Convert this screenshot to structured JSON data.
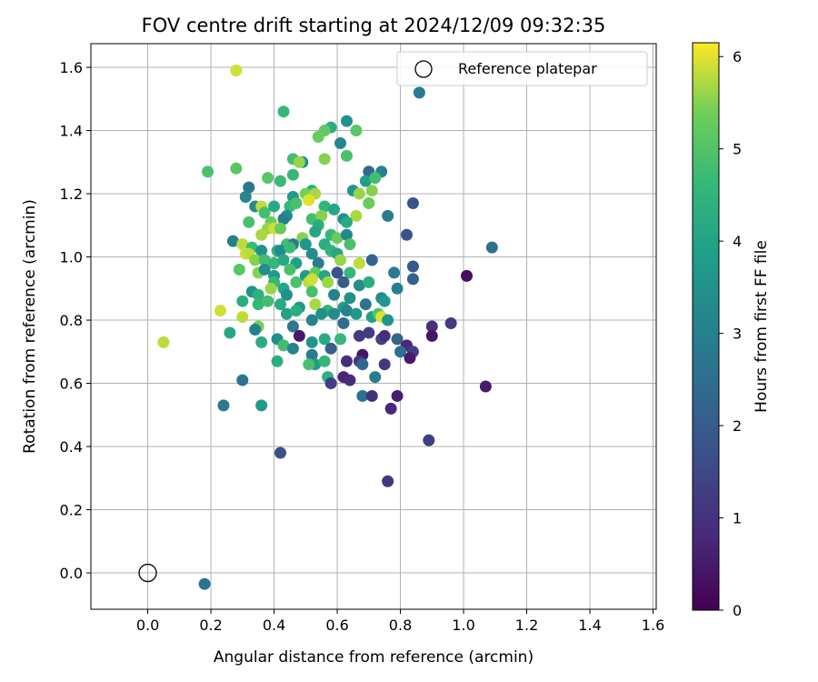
{
  "chart_data": {
    "type": "scatter",
    "title": "FOV centre drift starting at 2024/12/09 09:32:35",
    "xlabel": "Angular distance from reference (arcmin)",
    "ylabel": "Rotation from reference (arcmin)",
    "xlim": [
      -0.18,
      1.61
    ],
    "ylim": [
      -0.115,
      1.675
    ],
    "xticks": [
      0.0,
      0.2,
      0.4,
      0.6,
      0.8,
      1.0,
      1.2,
      1.4,
      1.6
    ],
    "xtick_labels": [
      "0.0",
      "0.2",
      "0.4",
      "0.6",
      "0.8",
      "1.0",
      "1.2",
      "1.4",
      "1.6"
    ],
    "yticks": [
      0.0,
      0.2,
      0.4,
      0.6,
      0.8,
      1.0,
      1.2,
      1.4,
      1.6
    ],
    "ytick_labels": [
      "0.0",
      "0.2",
      "0.4",
      "0.6",
      "0.8",
      "1.0",
      "1.2",
      "1.4",
      "1.6"
    ],
    "grid": true,
    "legend": {
      "position": "top-right",
      "entries": [
        "Reference platepar"
      ]
    },
    "reference_point": {
      "x": 0.0,
      "y": 0.0,
      "label": "Reference platepar"
    },
    "colorbar": {
      "label": "Hours from first FF file",
      "colormap": "viridis",
      "range": [
        0,
        6.15
      ],
      "ticks": [
        0,
        1,
        2,
        3,
        4,
        5,
        6
      ],
      "tick_labels": [
        "0",
        "1",
        "2",
        "3",
        "4",
        "5",
        "6"
      ]
    },
    "series": [
      {
        "points": [
          [
            0.28,
            1.59,
            5.9
          ],
          [
            0.86,
            1.52,
            2.9
          ],
          [
            0.43,
            1.46,
            4.6
          ],
          [
            0.63,
            1.43,
            3.5
          ],
          [
            0.58,
            1.41,
            4.3
          ],
          [
            0.56,
            1.4,
            5.2
          ],
          [
            0.66,
            1.4,
            5.1
          ],
          [
            0.54,
            1.38,
            5.3
          ],
          [
            0.61,
            1.36,
            3.2
          ],
          [
            0.46,
            1.31,
            4.8
          ],
          [
            0.49,
            1.3,
            3.5
          ],
          [
            0.48,
            1.3,
            5.6
          ],
          [
            0.63,
            1.32,
            4.9
          ],
          [
            0.56,
            1.31,
            5.5
          ],
          [
            0.28,
            1.28,
            5.1
          ],
          [
            0.19,
            1.27,
            4.9
          ],
          [
            0.7,
            1.27,
            2.3
          ],
          [
            0.74,
            1.27,
            3.1
          ],
          [
            0.46,
            1.26,
            4.6
          ],
          [
            0.38,
            1.25,
            5.1
          ],
          [
            0.42,
            1.24,
            4.7
          ],
          [
            0.69,
            1.24,
            3.9
          ],
          [
            0.72,
            1.25,
            4.8
          ],
          [
            0.32,
            1.22,
            2.7
          ],
          [
            0.52,
            1.21,
            4.3
          ],
          [
            0.65,
            1.21,
            3.6
          ],
          [
            0.71,
            1.21,
            5.5
          ],
          [
            0.31,
            1.19,
            3.2
          ],
          [
            0.46,
            1.19,
            3.8
          ],
          [
            0.5,
            1.2,
            5.4
          ],
          [
            0.53,
            1.2,
            5.7
          ],
          [
            0.67,
            1.2,
            5.6
          ],
          [
            0.34,
            1.16,
            3.3
          ],
          [
            0.36,
            1.16,
            5.8
          ],
          [
            0.4,
            1.16,
            4.2
          ],
          [
            0.45,
            1.16,
            4.6
          ],
          [
            0.47,
            1.17,
            4.9
          ],
          [
            0.51,
            1.18,
            6.0
          ],
          [
            0.56,
            1.16,
            4.5
          ],
          [
            0.59,
            1.15,
            4.1
          ],
          [
            0.7,
            1.17,
            5.3
          ],
          [
            0.37,
            1.14,
            4.8
          ],
          [
            0.44,
            1.13,
            3.3
          ],
          [
            0.52,
            1.12,
            4.8
          ],
          [
            0.55,
            1.13,
            5.5
          ],
          [
            0.62,
            1.12,
            3.4
          ],
          [
            0.66,
            1.13,
            5.7
          ],
          [
            0.76,
            1.13,
            2.9
          ],
          [
            0.84,
            1.17,
            1.8
          ],
          [
            0.32,
            1.11,
            4.9
          ],
          [
            0.39,
            1.11,
            5.3
          ],
          [
            0.43,
            1.12,
            3.0
          ],
          [
            0.54,
            1.1,
            4.3
          ],
          [
            0.63,
            1.11,
            4.2
          ],
          [
            0.38,
            1.09,
            5.6
          ],
          [
            0.4,
            1.09,
            5.9
          ],
          [
            0.42,
            1.09,
            5.3
          ],
          [
            0.53,
            1.08,
            4.1
          ],
          [
            0.58,
            1.07,
            4.6
          ],
          [
            0.6,
            1.06,
            5.3
          ],
          [
            0.27,
            1.05,
            2.9
          ],
          [
            0.36,
            1.07,
            5.7
          ],
          [
            0.49,
            1.06,
            5.5
          ],
          [
            0.63,
            1.07,
            3.2
          ],
          [
            0.82,
            1.07,
            1.8
          ],
          [
            1.09,
            1.03,
            2.5
          ],
          [
            0.3,
            1.04,
            5.8
          ],
          [
            0.33,
            1.03,
            4.7
          ],
          [
            0.41,
            1.02,
            4.4
          ],
          [
            0.44,
            1.04,
            4.8
          ],
          [
            0.46,
            1.04,
            2.9
          ],
          [
            0.5,
            1.04,
            3.6
          ],
          [
            0.56,
            1.04,
            4.3
          ],
          [
            0.64,
            1.04,
            4.9
          ],
          [
            0.31,
            1.01,
            5.9
          ],
          [
            0.32,
            1.01,
            5.8
          ],
          [
            0.36,
            1.02,
            3.5
          ],
          [
            0.42,
            1.02,
            3.3
          ],
          [
            0.45,
            1.03,
            4.7
          ],
          [
            0.52,
            1.01,
            3.4
          ],
          [
            0.58,
            1.02,
            4.5
          ],
          [
            0.6,
            1.01,
            4.1
          ],
          [
            0.34,
            0.99,
            5.5
          ],
          [
            0.37,
            0.99,
            4.8
          ],
          [
            0.4,
            0.98,
            4.6
          ],
          [
            0.43,
            0.99,
            4.2
          ],
          [
            0.47,
            0.98,
            3.9
          ],
          [
            0.54,
            0.98,
            3.0
          ],
          [
            0.61,
            0.99,
            5.6
          ],
          [
            0.67,
            0.98,
            5.8
          ],
          [
            0.71,
            0.99,
            2.2
          ],
          [
            0.29,
            0.96,
            5.1
          ],
          [
            0.35,
            0.95,
            5.5
          ],
          [
            0.37,
            0.96,
            3.4
          ],
          [
            0.4,
            0.94,
            3.7
          ],
          [
            0.45,
            0.96,
            4.9
          ],
          [
            0.5,
            0.94,
            3.8
          ],
          [
            0.53,
            0.95,
            5.2
          ],
          [
            0.56,
            0.94,
            4.1
          ],
          [
            0.6,
            0.95,
            1.8
          ],
          [
            0.64,
            0.95,
            4.6
          ],
          [
            0.78,
            0.95,
            2.8
          ],
          [
            0.84,
            0.97,
            1.9
          ],
          [
            0.4,
            0.92,
            4.6
          ],
          [
            0.43,
            0.9,
            4.1
          ],
          [
            0.47,
            0.92,
            4.9
          ],
          [
            0.51,
            0.92,
            5.8
          ],
          [
            0.52,
            0.93,
            5.9
          ],
          [
            0.57,
            0.92,
            5.6
          ],
          [
            0.62,
            0.92,
            2.0
          ],
          [
            0.67,
            0.91,
            3.4
          ],
          [
            0.7,
            0.92,
            4.3
          ],
          [
            0.84,
            0.93,
            2.2
          ],
          [
            0.33,
            0.89,
            3.6
          ],
          [
            0.35,
            0.88,
            4.4
          ],
          [
            0.39,
            0.9,
            5.6
          ],
          [
            0.44,
            0.88,
            3.4
          ],
          [
            0.52,
            0.89,
            4.9
          ],
          [
            0.59,
            0.88,
            3.1
          ],
          [
            0.64,
            0.87,
            3.5
          ],
          [
            0.74,
            0.87,
            3.3
          ],
          [
            0.3,
            0.86,
            4.3
          ],
          [
            0.35,
            0.85,
            4.6
          ],
          [
            0.38,
            0.86,
            4.8
          ],
          [
            0.42,
            0.85,
            4.2
          ],
          [
            0.48,
            0.84,
            3.6
          ],
          [
            0.53,
            0.85,
            5.7
          ],
          [
            0.57,
            0.83,
            4.5
          ],
          [
            0.62,
            0.84,
            3.8
          ],
          [
            0.69,
            0.85,
            2.6
          ],
          [
            0.75,
            0.86,
            3.7
          ],
          [
            0.79,
            0.9,
            3.0
          ],
          [
            0.23,
            0.83,
            5.9
          ],
          [
            0.3,
            0.81,
            5.8
          ],
          [
            0.35,
            0.78,
            5.4
          ],
          [
            0.44,
            0.82,
            4.0
          ],
          [
            0.47,
            0.83,
            4.3
          ],
          [
            0.52,
            0.8,
            3.1
          ],
          [
            0.55,
            0.82,
            3.5
          ],
          [
            0.59,
            0.82,
            3.3
          ],
          [
            0.63,
            0.83,
            3.1
          ],
          [
            0.66,
            0.82,
            3.7
          ],
          [
            0.71,
            0.81,
            3.9
          ],
          [
            0.73,
            0.82,
            5.0
          ],
          [
            0.74,
            0.81,
            6.0
          ],
          [
            0.76,
            0.8,
            3.6
          ],
          [
            0.62,
            0.79,
            2.4
          ],
          [
            0.46,
            0.78,
            2.8
          ],
          [
            0.34,
            0.77,
            3.0
          ],
          [
            0.26,
            0.76,
            4.1
          ],
          [
            0.05,
            0.73,
            5.8
          ],
          [
            0.36,
            0.73,
            4.3
          ],
          [
            0.41,
            0.74,
            3.4
          ],
          [
            0.43,
            0.72,
            4.8
          ],
          [
            0.46,
            0.71,
            3.1
          ],
          [
            0.48,
            0.75,
            0.5
          ],
          [
            0.52,
            0.73,
            3.6
          ],
          [
            0.56,
            0.74,
            4.2
          ],
          [
            0.61,
            0.74,
            4.6
          ],
          [
            0.67,
            0.75,
            1.2
          ],
          [
            0.7,
            0.76,
            1.3
          ],
          [
            0.74,
            0.74,
            1.4
          ],
          [
            0.75,
            0.75,
            0.9
          ],
          [
            0.79,
            0.74,
            2.2
          ],
          [
            0.82,
            0.72,
            0.8
          ],
          [
            0.9,
            0.78,
            1.0
          ],
          [
            0.96,
            0.79,
            1.2
          ],
          [
            0.9,
            0.75,
            0.4
          ],
          [
            0.8,
            0.7,
            2.5
          ],
          [
            0.84,
            0.7,
            1.3
          ],
          [
            0.83,
            0.68,
            0.5
          ],
          [
            0.68,
            0.69,
            0.4
          ],
          [
            0.63,
            0.67,
            0.9
          ],
          [
            0.58,
            0.71,
            2.1
          ],
          [
            0.52,
            0.69,
            2.9
          ],
          [
            0.53,
            0.66,
            3.8
          ],
          [
            0.51,
            0.66,
            4.9
          ],
          [
            0.56,
            0.67,
            4.6
          ],
          [
            0.41,
            0.67,
            4.3
          ],
          [
            0.67,
            0.67,
            1.1
          ],
          [
            0.68,
            0.66,
            2.3
          ],
          [
            0.75,
            0.66,
            1.1
          ],
          [
            0.3,
            0.61,
            2.7
          ],
          [
            0.57,
            0.62,
            4.4
          ],
          [
            0.58,
            0.6,
            1.3
          ],
          [
            0.62,
            0.62,
            0.7
          ],
          [
            0.64,
            0.61,
            0.9
          ],
          [
            0.72,
            0.62,
            3.0
          ],
          [
            1.07,
            0.59,
            0.5
          ],
          [
            0.68,
            0.56,
            2.6
          ],
          [
            0.71,
            0.56,
            1.0
          ],
          [
            0.79,
            0.56,
            0.6
          ],
          [
            0.36,
            0.53,
            3.7
          ],
          [
            0.24,
            0.53,
            2.8
          ],
          [
            0.77,
            0.52,
            0.8
          ],
          [
            0.89,
            0.42,
            1.3
          ],
          [
            0.42,
            0.38,
            1.7
          ],
          [
            0.76,
            0.29,
            1.1
          ],
          [
            1.01,
            0.94,
            0.3
          ],
          [
            0.18,
            -0.035,
            2.6
          ]
        ]
      }
    ]
  }
}
